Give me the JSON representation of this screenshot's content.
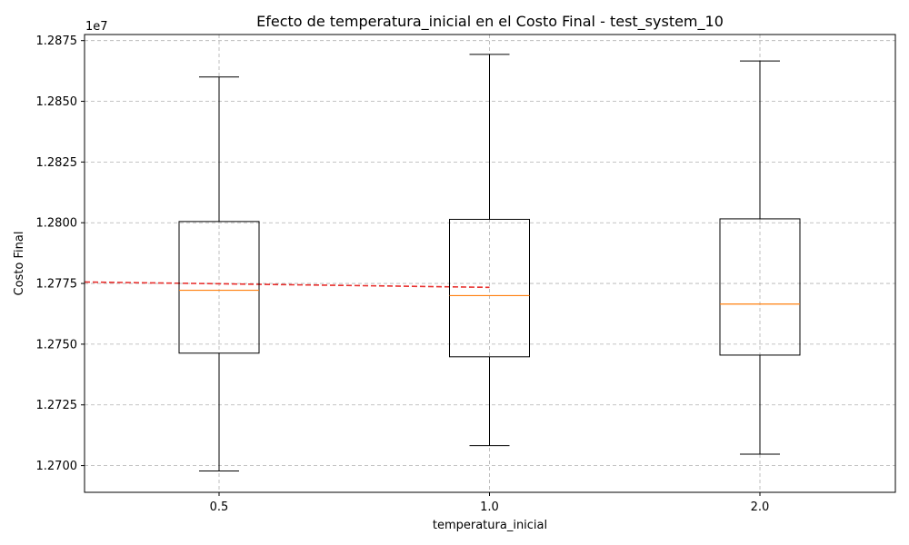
{
  "chart_data": {
    "type": "box",
    "title": "Efecto de temperatura_inicial en el Costo Final - test_system_10",
    "xlabel": "temperatura_inicial",
    "ylabel": "Costo Final",
    "y_offset_label": "1e7",
    "categories": [
      "0.5",
      "1.0",
      "2.0"
    ],
    "ylim": [
      12689000,
      12877500
    ],
    "y_ticks": [
      12700000,
      12725000,
      12750000,
      12775000,
      12800000,
      12825000,
      12850000,
      12875000
    ],
    "y_tick_labels": [
      "1.2700",
      "1.2725",
      "1.2750",
      "1.2775",
      "1.2800",
      "1.2825",
      "1.2850",
      "1.2875"
    ],
    "boxes": [
      {
        "category": "0.5",
        "whisker_low": 12697800,
        "q1": 12746300,
        "median": 12772200,
        "q3": 12800500,
        "whisker_high": 12860000
      },
      {
        "category": "1.0",
        "whisker_low": 12708200,
        "q1": 12744800,
        "median": 12770000,
        "q3": 12801400,
        "whisker_high": 12869300
      },
      {
        "category": "2.0",
        "whisker_low": 12704700,
        "q1": 12745500,
        "median": 12766500,
        "q3": 12801600,
        "whisker_high": 12866600
      }
    ],
    "trend_line": {
      "x": [
        0.0,
        1.0
      ],
      "y": [
        12775600,
        12773400
      ]
    },
    "grid": true,
    "colors": {
      "box": "#000000",
      "median": "#ff7f0e",
      "trend": "#e8312f",
      "grid": "#b0b0b0"
    }
  }
}
